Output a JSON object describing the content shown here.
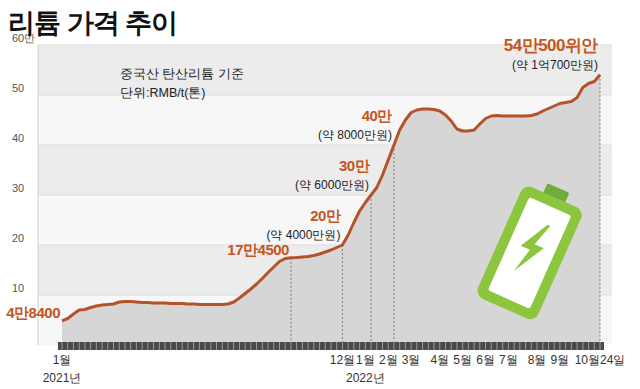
{
  "chart_data": {
    "type": "area",
    "title": "리튬 가격 추이",
    "subtitle": [
      "중국산 탄산리튬 기준",
      "단위:RMB/t(톤)"
    ],
    "categories": [
      "1월\n2021년",
      null,
      null,
      null,
      null,
      null,
      null,
      null,
      null,
      null,
      null,
      null,
      null,
      null,
      null,
      null,
      null,
      null,
      null,
      null,
      null,
      null,
      null,
      null,
      null,
      null,
      null,
      null,
      null,
      null,
      null,
      null,
      null,
      null,
      null,
      null,
      null,
      null,
      null,
      null,
      null,
      null,
      null,
      null,
      null,
      null,
      null,
      null,
      null,
      "12월",
      null,
      null,
      null,
      "1월\n2022년",
      null,
      null,
      null,
      "2월",
      null,
      null,
      null,
      "3월",
      null,
      null,
      null,
      null,
      "4월",
      null,
      null,
      null,
      "5월",
      null,
      null,
      null,
      "6월",
      null,
      null,
      null,
      "7월",
      null,
      null,
      null,
      null,
      "8월",
      null,
      null,
      null,
      "9월",
      null,
      null,
      null,
      null,
      null,
      null,
      "10월24일"
    ],
    "values": [
      4.84,
      5.3,
      6.2,
      7.0,
      7.1,
      7.5,
      7.8,
      8.0,
      8.1,
      8.2,
      8.6,
      8.7,
      8.7,
      8.6,
      8.5,
      8.5,
      8.4,
      8.4,
      8.4,
      8.3,
      8.3,
      8.3,
      8.2,
      8.2,
      8.1,
      8.1,
      8.1,
      8.1,
      8.1,
      8.2,
      8.6,
      9.4,
      10.3,
      11.2,
      12.2,
      13.3,
      14.5,
      15.6,
      16.7,
      17.3,
      17.45,
      17.5,
      17.6,
      17.7,
      17.9,
      18.2,
      18.6,
      19.0,
      19.5,
      20.0,
      22.0,
      24.5,
      26.8,
      28.5,
      30.0,
      31.5,
      34.0,
      37.0,
      40.0,
      43.0,
      45.0,
      46.5,
      47.0,
      47.2,
      47.2,
      47.1,
      46.8,
      46.0,
      44.8,
      43.2,
      42.8,
      42.8,
      43.0,
      44.2,
      45.3,
      45.8,
      45.9,
      45.8,
      45.8,
      45.8,
      45.8,
      45.8,
      45.9,
      46.2,
      46.8,
      47.3,
      47.8,
      48.3,
      48.5,
      48.7,
      49.5,
      51.5,
      52.3,
      52.7,
      54.05
    ],
    "value_labels": [
      "4만8400",
      null,
      null,
      null,
      null,
      null,
      null,
      null,
      null,
      null,
      null,
      null,
      null,
      null,
      null,
      null,
      null,
      null,
      null,
      null,
      null,
      null,
      null,
      null,
      null,
      null,
      null,
      null,
      null,
      null,
      null,
      null,
      null,
      null,
      null,
      null,
      null,
      null,
      null,
      null,
      "17만4500",
      null,
      null,
      null,
      null,
      null,
      null,
      null,
      null,
      "20만",
      null,
      null,
      null,
      null,
      "30만",
      null,
      null,
      null,
      "40만",
      null,
      null,
      null,
      null,
      null,
      null,
      null,
      null,
      null,
      null,
      null,
      null,
      null,
      null,
      null,
      null,
      null,
      null,
      null,
      null,
      null,
      null,
      null,
      null,
      null,
      null,
      null,
      null,
      null,
      null,
      null,
      null,
      null,
      null,
      null,
      "54만500위안"
    ],
    "annotations": [
      {
        "text": "(약 4000만원)",
        "index": 49
      },
      {
        "text": "(약 6000만원)",
        "index": 54
      },
      {
        "text": "(약 8000만원)",
        "index": 58
      },
      {
        "text": "(약 1억700만원)",
        "index": 94
      }
    ],
    "color": "#b4532a",
    "ylim": [
      0,
      60
    ],
    "yticks": [
      10,
      20,
      30,
      40,
      50,
      {
        "value": 60,
        "label": "60만"
      }
    ],
    "grid": true
  }
}
